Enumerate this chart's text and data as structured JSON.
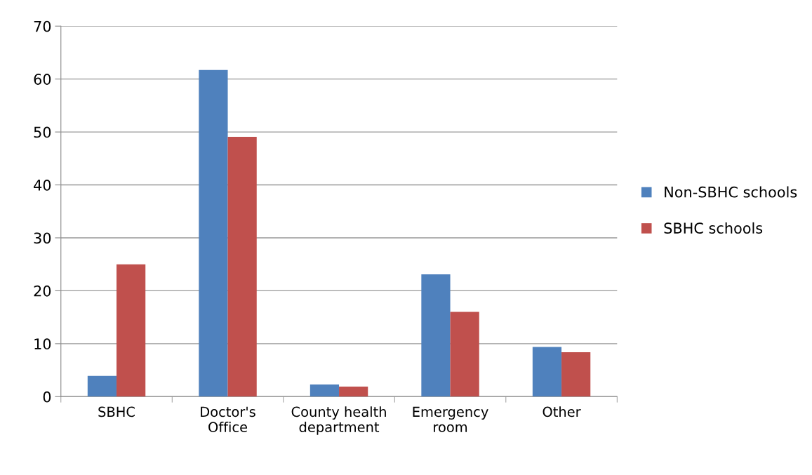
{
  "chart_data": {
    "type": "bar",
    "categories": [
      "SBHC",
      "Doctor's Office",
      "County health department",
      "Emergency room",
      "Other"
    ],
    "series": [
      {
        "name": "Non-SBHC schools",
        "color": "#4f81bd",
        "values": [
          3.9,
          61.7,
          2.3,
          23.1,
          9.4
        ]
      },
      {
        "name": "SBHC schools",
        "color": "#c0504d",
        "values": [
          25,
          49.1,
          1.9,
          16,
          8.4
        ]
      }
    ],
    "ylim": [
      0,
      70
    ],
    "yticks": [
      0,
      10,
      20,
      30,
      40,
      50,
      60,
      70
    ],
    "grid": "y",
    "legend": "right"
  }
}
